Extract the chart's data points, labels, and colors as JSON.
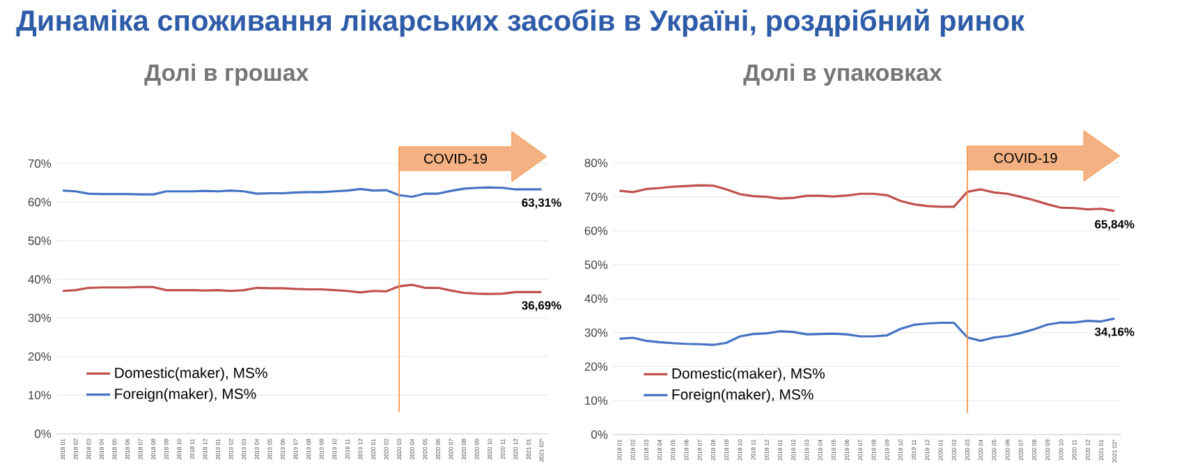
{
  "chart_data": [
    {
      "type": "line",
      "title": "Динаміка споживання лікарських засобів в Україні, роздрібний ринок",
      "subtitle": "Долі в грошах",
      "categories": [
        "2018 01",
        "2018 02",
        "2018 03",
        "2018 04",
        "2018 05",
        "2018 06",
        "2018 07",
        "2018 08",
        "2018 09",
        "2018 10",
        "2018 11",
        "2018 12",
        "2019 01",
        "2019 02",
        "2019 03",
        "2019 04",
        "2019 05",
        "2019 06",
        "2019 07",
        "2019 08",
        "2019 09",
        "2019 10",
        "2019 11",
        "2019 12",
        "2020 01",
        "2020 02",
        "2020 03",
        "2020 04",
        "2020 05",
        "2020 06",
        "2020 07",
        "2020 08",
        "2020 09",
        "2020 10",
        "2020 11",
        "2020 12",
        "2021 01",
        "2021 02*"
      ],
      "series": [
        {
          "name": "Domestic(maker), MS%",
          "color": "#c0504d",
          "values": [
            37.0,
            37.2,
            37.8,
            37.9,
            37.9,
            37.9,
            38.0,
            38.0,
            37.2,
            37.2,
            37.2,
            37.1,
            37.2,
            37.0,
            37.2,
            37.8,
            37.7,
            37.7,
            37.5,
            37.4,
            37.4,
            37.2,
            37.0,
            36.6,
            37.0,
            36.9,
            38.2,
            38.6,
            37.8,
            37.8,
            37.1,
            36.5,
            36.3,
            36.2,
            36.3,
            36.7,
            36.7,
            36.69
          ],
          "value_labels": [
            null,
            null,
            null,
            null,
            null,
            null,
            null,
            null,
            null,
            null,
            null,
            null,
            null,
            null,
            null,
            null,
            null,
            null,
            null,
            null,
            null,
            null,
            null,
            null,
            null,
            null,
            null,
            null,
            null,
            null,
            null,
            null,
            null,
            null,
            null,
            null,
            null,
            "36,69%"
          ]
        },
        {
          "name": "Foreign(maker), MS%",
          "color": "#4472c4",
          "values": [
            63.0,
            62.8,
            62.2,
            62.1,
            62.1,
            62.1,
            62.0,
            62.0,
            62.8,
            62.8,
            62.8,
            62.9,
            62.8,
            63.0,
            62.8,
            62.2,
            62.3,
            62.3,
            62.5,
            62.6,
            62.6,
            62.8,
            63.0,
            63.4,
            63.0,
            63.1,
            61.8,
            61.4,
            62.2,
            62.2,
            62.9,
            63.5,
            63.7,
            63.8,
            63.7,
            63.3,
            63.3,
            63.31
          ],
          "value_labels": [
            null,
            null,
            null,
            null,
            null,
            null,
            null,
            null,
            null,
            null,
            null,
            null,
            null,
            null,
            null,
            null,
            null,
            null,
            null,
            null,
            null,
            null,
            null,
            null,
            null,
            null,
            null,
            null,
            null,
            null,
            null,
            null,
            null,
            null,
            null,
            null,
            null,
            "63,31%"
          ]
        }
      ],
      "ylim": [
        0,
        70
      ],
      "yticks": [
        {
          "value": 0,
          "label": "0%"
        },
        {
          "value": 10,
          "label": "10%"
        },
        {
          "value": 20,
          "label": "20%"
        },
        {
          "value": 30,
          "label": "30%"
        },
        {
          "value": 40,
          "label": "40%"
        },
        {
          "value": 50,
          "label": "50%"
        },
        {
          "value": 60,
          "label": "60%"
        },
        {
          "value": 70,
          "label": "70%"
        }
      ],
      "grid": "y",
      "legend": "bottom left",
      "ref_lines": [
        {
          "axis": "x",
          "value": "2020 03",
          "label": "COVID-19",
          "color": "#f79646"
        }
      ]
    },
    {
      "type": "line",
      "subtitle": "Долі в упаковках",
      "categories": [
        "2018 01",
        "2018 02",
        "2018 03",
        "2018 04",
        "2018 05",
        "2018 06",
        "2018 07",
        "2018 08",
        "2018 09",
        "2018 10",
        "2018 11",
        "2018 12",
        "2019 01",
        "2019 02",
        "2019 03",
        "2019 04",
        "2019 05",
        "2019 06",
        "2019 07",
        "2019 08",
        "2019 09",
        "2019 10",
        "2019 11",
        "2019 12",
        "2020 01",
        "2020 02",
        "2020 03",
        "2020 04",
        "2020 05",
        "2020 06",
        "2020 07",
        "2020 08",
        "2020 09",
        "2020 10",
        "2020 11",
        "2020 12",
        "2021 01",
        "2021 02*"
      ],
      "series": [
        {
          "name": "Domestic(maker), MS%",
          "color": "#c0504d",
          "values": [
            71.8,
            71.4,
            72.3,
            72.6,
            73.0,
            73.2,
            73.4,
            73.3,
            72.2,
            70.8,
            70.2,
            70.0,
            69.5,
            69.7,
            70.3,
            70.3,
            70.1,
            70.4,
            70.9,
            70.9,
            70.5,
            68.8,
            67.8,
            67.3,
            67.1,
            67.1,
            71.5,
            72.2,
            71.3,
            70.9,
            70.0,
            69.0,
            67.8,
            66.8,
            66.7,
            66.3,
            66.5,
            65.84
          ],
          "value_labels": [
            null,
            null,
            null,
            null,
            null,
            null,
            null,
            null,
            null,
            null,
            null,
            null,
            null,
            null,
            null,
            null,
            null,
            null,
            null,
            null,
            null,
            null,
            null,
            null,
            null,
            null,
            null,
            null,
            null,
            null,
            null,
            null,
            null,
            null,
            null,
            null,
            null,
            "65,84%"
          ]
        },
        {
          "name": "Foreign(maker), MS%",
          "color": "#4472c4",
          "values": [
            28.2,
            28.5,
            27.6,
            27.2,
            26.9,
            26.7,
            26.6,
            26.4,
            27.0,
            28.9,
            29.6,
            29.8,
            30.4,
            30.2,
            29.5,
            29.6,
            29.7,
            29.5,
            28.9,
            28.9,
            29.2,
            31.1,
            32.3,
            32.7,
            32.9,
            32.9,
            28.6,
            27.6,
            28.6,
            29.0,
            29.9,
            31.0,
            32.4,
            33.0,
            33.0,
            33.5,
            33.3,
            34.16
          ],
          "value_labels": [
            null,
            null,
            null,
            null,
            null,
            null,
            null,
            null,
            null,
            null,
            null,
            null,
            null,
            null,
            null,
            null,
            null,
            null,
            null,
            null,
            null,
            null,
            null,
            null,
            null,
            null,
            null,
            null,
            null,
            null,
            null,
            null,
            null,
            null,
            null,
            null,
            null,
            "34,16%"
          ]
        }
      ],
      "ylim": [
        0,
        80
      ],
      "yticks": [
        {
          "value": 0,
          "label": "0%"
        },
        {
          "value": 10,
          "label": "10%"
        },
        {
          "value": 20,
          "label": "20%"
        },
        {
          "value": 30,
          "label": "30%"
        },
        {
          "value": 40,
          "label": "40%"
        },
        {
          "value": 50,
          "label": "50%"
        },
        {
          "value": 60,
          "label": "60%"
        },
        {
          "value": 70,
          "label": "70%"
        },
        {
          "value": 80,
          "label": "80%"
        }
      ],
      "grid": "y",
      "legend": "bottom left",
      "ref_lines": [
        {
          "axis": "x",
          "value": "2020 03",
          "label": "COVID-19",
          "color": "#f79646"
        }
      ]
    }
  ]
}
